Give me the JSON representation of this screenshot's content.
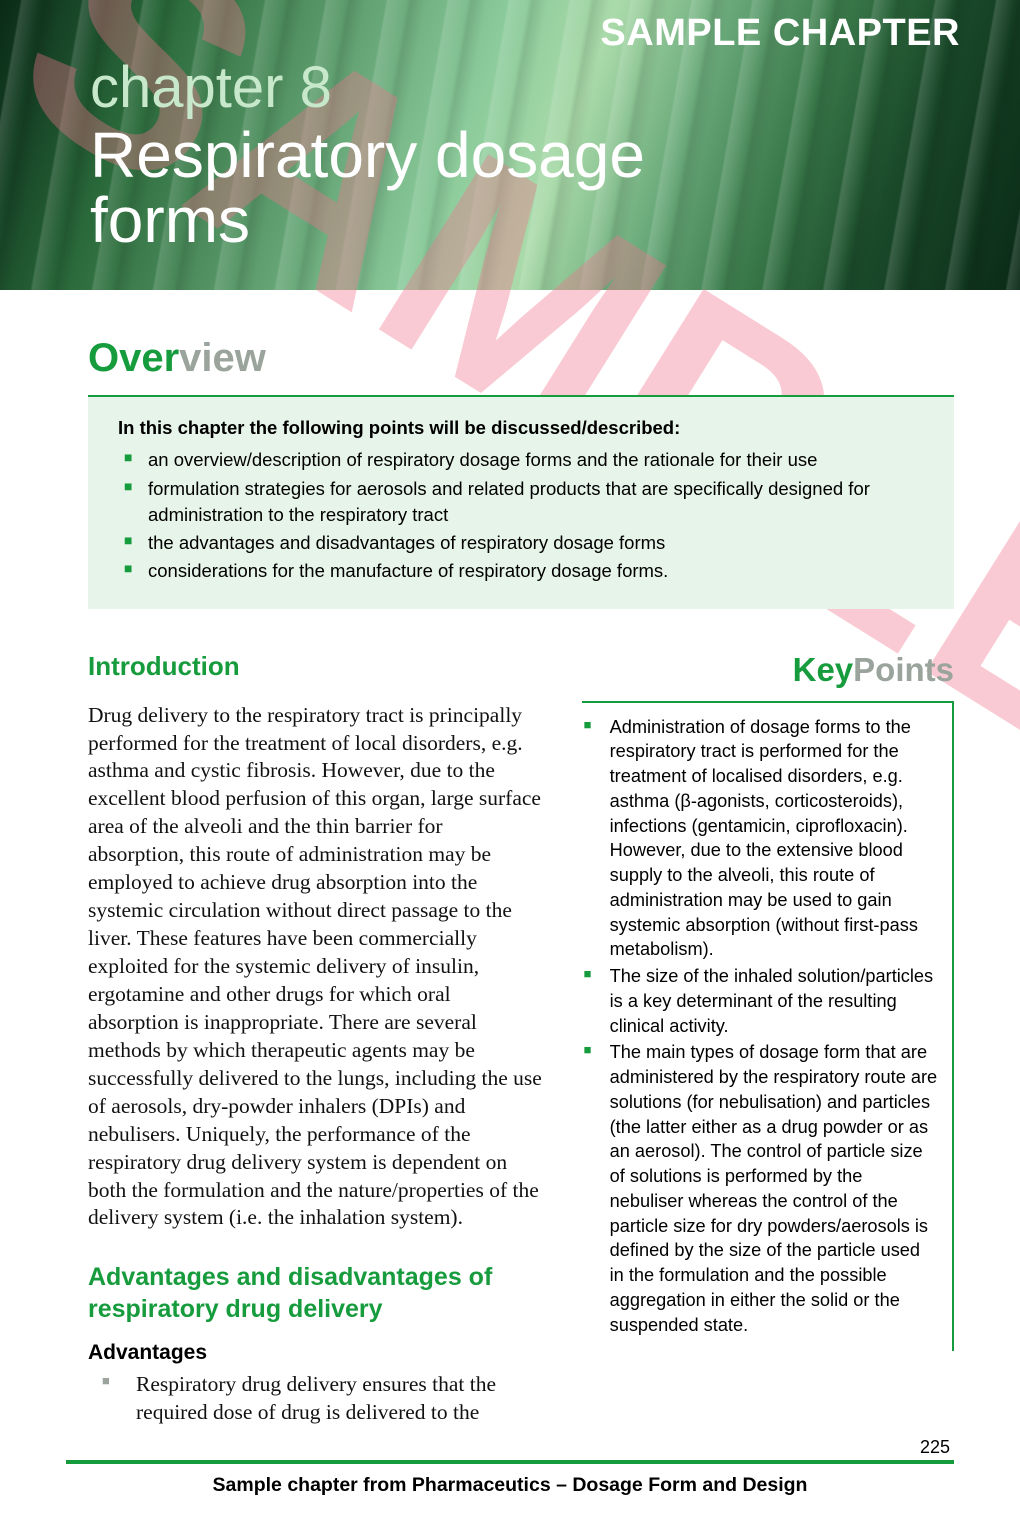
{
  "banner": {
    "sample": "SAMPLE CHAPTER",
    "chapter_label": "chapter 8",
    "title_line1": "Respiratory dosage",
    "title_line2": "forms"
  },
  "watermark": "SAMPLE",
  "overview": {
    "heading_green": "Over",
    "heading_grey": "view",
    "lead": "In this chapter the following points will be discussed/described:",
    "items": [
      "an overview/description of respiratory dosage forms and the rationale for their use",
      "formulation strategies for aerosols and related products that are specifically designed for administration to the respiratory tract",
      "the advantages and disadvantages of respiratory dosage forms",
      "considerations for the manufacture of respiratory dosage forms."
    ]
  },
  "introduction": {
    "heading": "Introduction",
    "body": "Drug delivery to the respiratory tract is principally performed for the treatment of local disorders, e.g. asthma and cystic fibrosis. However, due to the excellent blood perfusion of this organ, large surface area of the alveoli and the thin barrier for absorption, this route of administration may be employed to achieve drug absorption into the systemic circulation without direct passage to the liver. These features have been commercially exploited for the systemic delivery of insulin, ergotamine and other drugs for which oral absorption is inappropriate. There are several methods by which therapeutic agents may be successfully delivered to the lungs, including the use of aerosols, dry-powder inhalers (DPIs) and nebulisers. Uniquely, the performance of the respiratory drug delivery system is dependent on both the formulation and the nature/properties of the delivery system (i.e. the inhalation system)."
  },
  "adv": {
    "heading": "Advantages and disadvantages of respiratory drug delivery",
    "sub": "Advantages",
    "items": [
      "Respiratory drug delivery ensures that the required dose of drug is delivered to the"
    ]
  },
  "keypoints": {
    "heading_green": "Key",
    "heading_grey": "Points",
    "items": [
      "Administration of dosage forms to the respiratory tract is performed for the treatment of localised disorders, e.g. asthma (β-agonists, corticosteroids), infections (gentamicin, ciprofloxacin). However, due to the extensive blood supply to the alveoli, this route of administration may be used to gain systemic absorption (without first-pass metabolism).",
      "The size of the inhaled solution/particles is a key determinant of the resulting clinical activity.",
      "The main types of dosage form that are administered by the respiratory route are solutions (for nebulisation) and particles (the latter either as a drug powder or as an aerosol). The control of particle size of solutions is performed by the nebuliser whereas the control of the particle size for dry powders/aerosols is defined by the size of the particle used in the formulation and the possible aggregation in either the solid or the suspended state."
    ]
  },
  "footer": {
    "page": "225",
    "text": "Sample chapter from Pharmaceutics – Dosage Form and Design"
  },
  "colors": {
    "brand_green": "#169b3d",
    "grey": "#9aa49c",
    "overview_bg": "#e7f4e9",
    "watermark": "rgba(240,115,140,0.38)"
  }
}
